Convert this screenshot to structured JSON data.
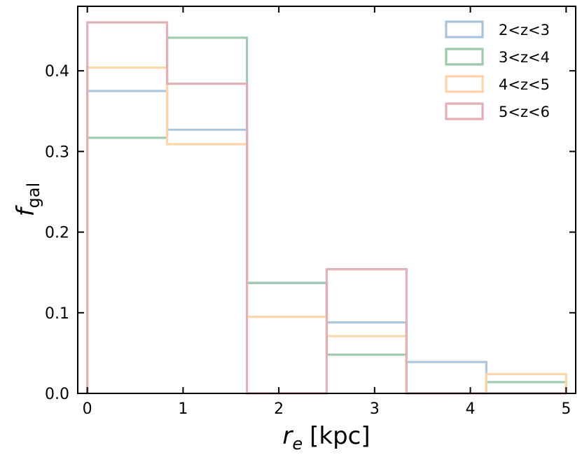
{
  "chart_data": {
    "type": "histogram",
    "xlabel_main": "r",
    "xlabel_sub": "e",
    "xlabel_unit": "[kpc]",
    "ylabel_main": "f",
    "ylabel_sub": "gal",
    "xlim": [
      -0.1,
      5.1
    ],
    "ylim": [
      0,
      0.48
    ],
    "xticks": [
      0,
      1,
      2,
      3,
      4,
      5
    ],
    "xtick_labels": [
      "0",
      "1",
      "2",
      "3",
      "4",
      "5"
    ],
    "yticks": [
      0.0,
      0.1,
      0.2,
      0.3,
      0.4
    ],
    "ytick_labels": [
      "0.0",
      "0.1",
      "0.2",
      "0.3",
      "0.4"
    ],
    "bin_edges": [
      0,
      0.833,
      1.667,
      2.5,
      3.333,
      4.167,
      5.0
    ],
    "legend_position": "top-right",
    "series": [
      {
        "name": "2<z<3",
        "color": "#a8c4dc",
        "values": [
          0.375,
          0.327,
          0.137,
          0.088,
          0.039,
          0.0
        ]
      },
      {
        "name": "3<z<4",
        "color": "#9cc8ac",
        "values": [
          0.317,
          0.441,
          0.137,
          0.048,
          0.0,
          0.014
        ]
      },
      {
        "name": "4<z<5",
        "color": "#fdd4a8",
        "values": [
          0.404,
          0.309,
          0.095,
          0.071,
          0.0,
          0.024
        ]
      },
      {
        "name": "5<z<6",
        "color": "#e2aeb4",
        "values": [
          0.46,
          0.384,
          0.0,
          0.154,
          0.0,
          0.0
        ]
      }
    ]
  }
}
